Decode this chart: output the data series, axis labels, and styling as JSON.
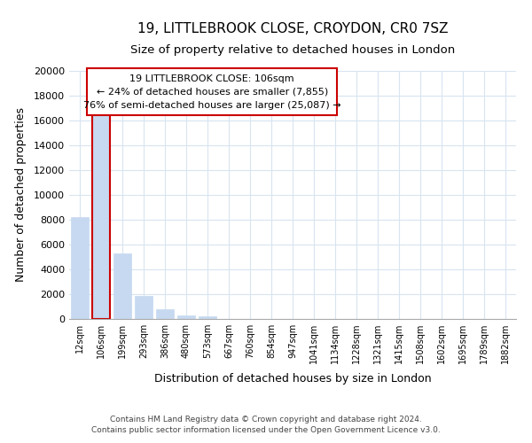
{
  "title": "19, LITTLEBROOK CLOSE, CROYDON, CR0 7SZ",
  "subtitle": "Size of property relative to detached houses in London",
  "xlabel": "Distribution of detached houses by size in London",
  "ylabel": "Number of detached properties",
  "bar_labels": [
    "12sqm",
    "106sqm",
    "199sqm",
    "293sqm",
    "386sqm",
    "480sqm",
    "573sqm",
    "667sqm",
    "760sqm",
    "854sqm",
    "947sqm",
    "1041sqm",
    "1134sqm",
    "1228sqm",
    "1321sqm",
    "1415sqm",
    "1508sqm",
    "1602sqm",
    "1695sqm",
    "1789sqm",
    "1882sqm"
  ],
  "bar_values": [
    8200,
    16600,
    5300,
    1850,
    800,
    280,
    200,
    0,
    0,
    0,
    0,
    0,
    0,
    0,
    0,
    0,
    0,
    0,
    0,
    0,
    0
  ],
  "bar_color": "#c6d9f0",
  "highlight_bar_index": 1,
  "highlight_edge_color": "#cc0000",
  "ylim": [
    0,
    20000
  ],
  "yticks": [
    0,
    2000,
    4000,
    6000,
    8000,
    10000,
    12000,
    14000,
    16000,
    18000,
    20000
  ],
  "annotation_line1": "19 LITTLEBROOK CLOSE: 106sqm",
  "annotation_line2": "← 24% of detached houses are smaller (7,855)",
  "annotation_line3": "76% of semi-detached houses are larger (25,087) →",
  "footer_line1": "Contains HM Land Registry data © Crown copyright and database right 2024.",
  "footer_line2": "Contains public sector information licensed under the Open Government Licence v3.0.",
  "background_color": "#ffffff",
  "grid_color": "#d8e4f0",
  "title_fontsize": 11,
  "subtitle_fontsize": 9.5
}
